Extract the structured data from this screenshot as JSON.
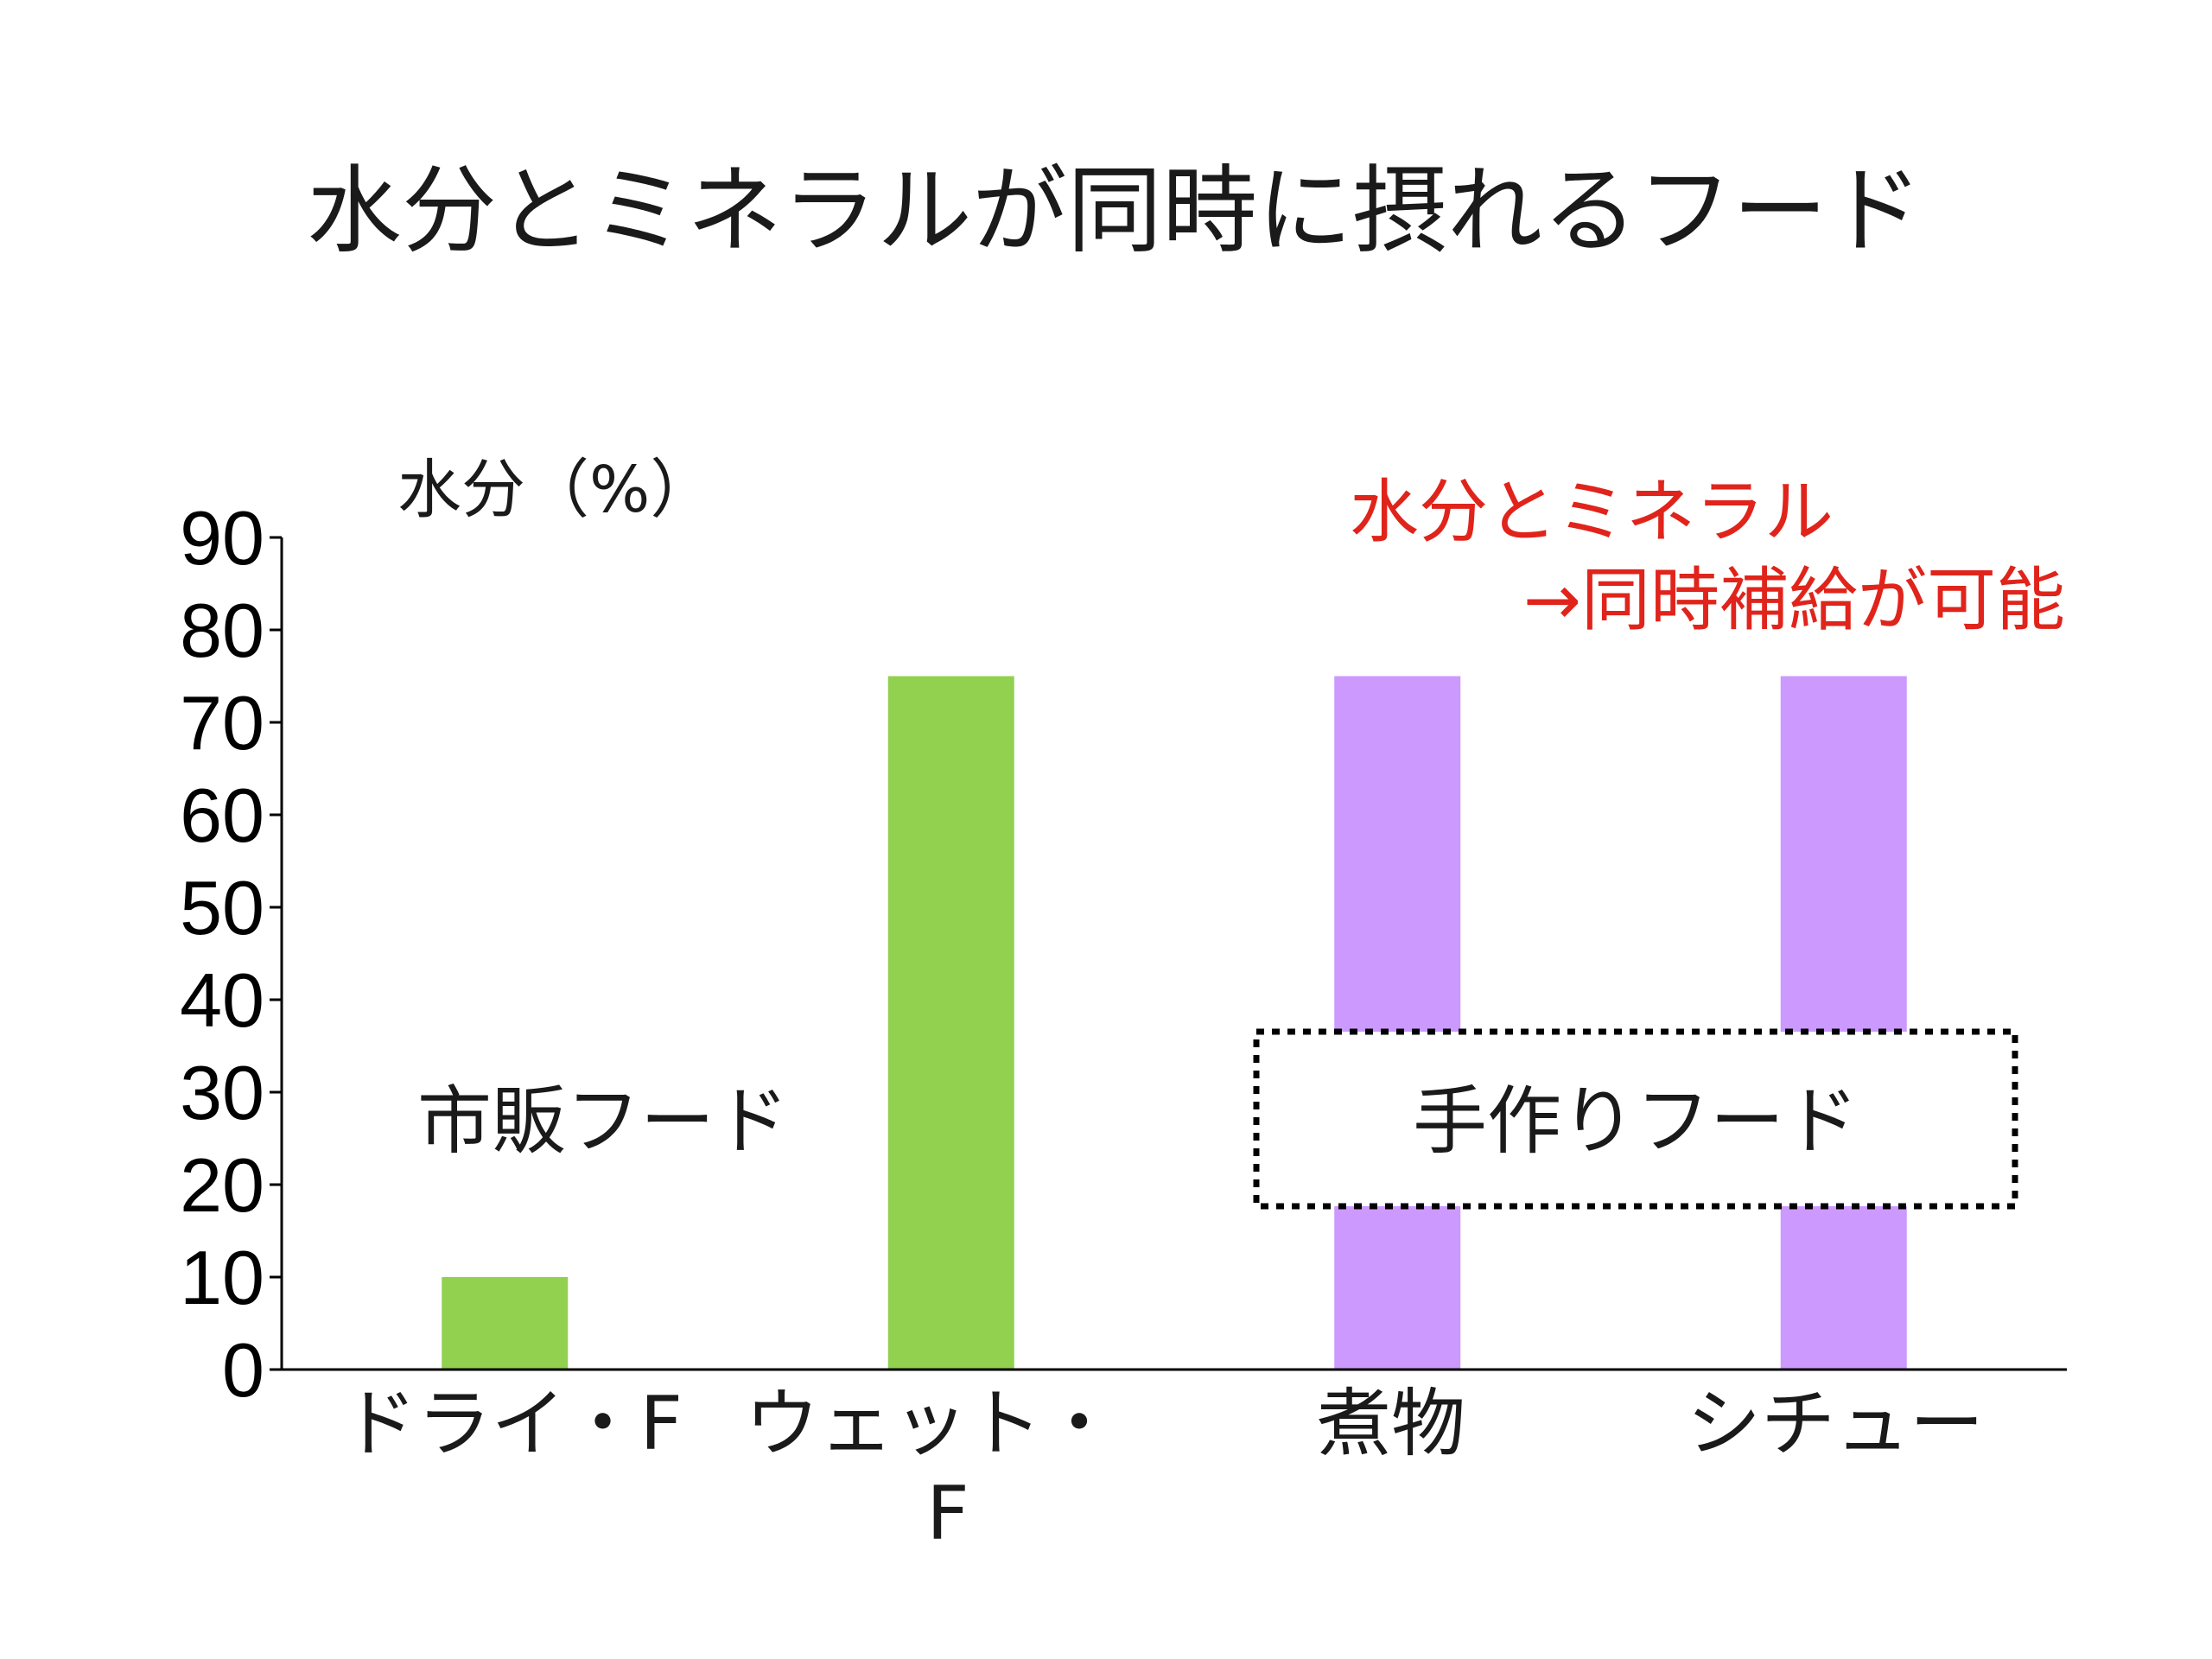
{
  "chart_data": {
    "type": "bar",
    "title": "水分とミネラルが同時に摂れるフード",
    "ylabel": "水分（%）",
    "xlabel": "",
    "ylim": [
      0,
      90
    ],
    "yticks": [
      0,
      10,
      20,
      30,
      40,
      50,
      60,
      70,
      80,
      90
    ],
    "categories": [
      {
        "lines": [
          "ドライ・F"
        ]
      },
      {
        "lines": [
          "ウェット・",
          "F"
        ]
      },
      {
        "lines": [
          "煮物"
        ]
      },
      {
        "lines": [
          "シチュー"
        ]
      }
    ],
    "values": [
      10,
      75,
      75,
      75
    ],
    "colors": [
      "#92d050",
      "#92d050",
      "#cc99ff",
      "#cc99ff"
    ],
    "axis_color": "#000000",
    "grid": false,
    "annotations": {
      "commercial_label": "市販フード",
      "homemade_label": "手作りフード",
      "note_line1": "水分とミネラル",
      "note_line2": "→同時補給が可能",
      "note_color": "#e0241b"
    }
  }
}
